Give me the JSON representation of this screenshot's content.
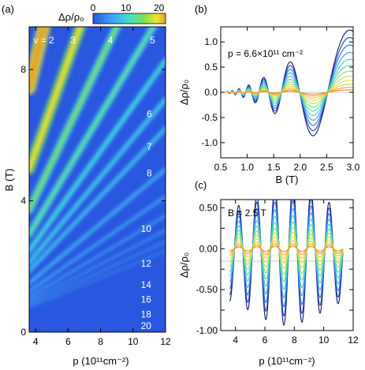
{
  "chart_data": [
    {
      "panel": "(a)",
      "type": "heatmap",
      "title": "",
      "xlabel": "p (10¹¹cm⁻²)",
      "ylabel": "B (T)",
      "xlim": [
        3.6,
        12.0
      ],
      "ylim": [
        0,
        9.3
      ],
      "xticks": [
        4,
        6,
        8,
        10,
        12
      ],
      "yticks": [
        0,
        4,
        8
      ],
      "colorbar": {
        "label": "Δρ/ρ₀",
        "ticks": [
          0,
          10,
          20
        ],
        "range": [
          0,
          22
        ],
        "colors": [
          "#2a57e0",
          "#3fa0ff",
          "#40e0d0",
          "#7ee050",
          "#e8e830",
          "#f0a020"
        ]
      },
      "filling_factor_labels": [
        {
          "nu": "ν = 2",
          "p": 4.5,
          "B": 8.8
        },
        {
          "nu": "3",
          "p": 6.3,
          "B": 8.8
        },
        {
          "nu": "4",
          "p": 8.6,
          "B": 8.8
        },
        {
          "nu": "5",
          "p": 11.2,
          "B": 8.8
        },
        {
          "nu": "6",
          "p": 11.0,
          "B": 6.55
        },
        {
          "nu": "7",
          "p": 11.0,
          "B": 5.55
        },
        {
          "nu": "8",
          "p": 11.0,
          "B": 4.75
        },
        {
          "nu": "10",
          "p": 10.8,
          "B": 3.05
        },
        {
          "nu": "12",
          "p": 10.8,
          "B": 2.0
        },
        {
          "nu": "14",
          "p": 10.8,
          "B": 1.35
        },
        {
          "nu": "16",
          "p": 10.8,
          "B": 0.9
        },
        {
          "nu": "18",
          "p": 10.8,
          "B": 0.45
        },
        {
          "nu": "20",
          "p": 10.8,
          "B": 0.1
        }
      ]
    },
    {
      "panel": "(b)",
      "type": "line",
      "title": "",
      "annotation": "p = 6.6×10¹¹ cm⁻²",
      "xlabel": "B (T)",
      "ylabel": "Δρ/ρ₀",
      "xlim": [
        0.5,
        3.0
      ],
      "ylim": [
        -1.3,
        1.3
      ],
      "xticks": [
        0.5,
        1.0,
        1.5,
        2.0,
        2.5,
        3.0
      ],
      "yticks": [
        -1.0,
        -0.5,
        0.0,
        0.5,
        1.0
      ],
      "xtick_labels": [
        "0.5",
        "1.0",
        "1.5",
        "2.0",
        "2.5",
        "3.0"
      ],
      "ytick_labels": [
        "-1.0",
        "-0.5",
        "0.0",
        "0.5",
        "1.0"
      ],
      "series_amplitudes": [
        1.0,
        0.88,
        0.76,
        0.64,
        0.53,
        0.43,
        0.34,
        0.26,
        0.19,
        0.13,
        0.08,
        0.04
      ],
      "series_colors": [
        "#0a1a70",
        "#1f3fb0",
        "#2f6fd8",
        "#3fa0e8",
        "#40c8d0",
        "#50d8a0",
        "#80e070",
        "#b0e060",
        "#d8e050",
        "#f0c040",
        "#f0a030",
        "#f08a20"
      ]
    },
    {
      "panel": "(c)",
      "type": "line",
      "title": "",
      "annotation": "B = 2.5 T",
      "xlabel": "p (10¹¹cm⁻²)",
      "ylabel": "Δρ/ρ₀",
      "xlim": [
        3.0,
        12.0
      ],
      "ylim": [
        -1.0,
        0.6
      ],
      "xticks": [
        4,
        6,
        8,
        10,
        12
      ],
      "yticks": [
        -1.0,
        -0.75,
        -0.5,
        -0.25,
        0.0,
        0.25,
        0.5
      ],
      "xtick_labels": [
        "4",
        "6",
        "8",
        "10",
        "12"
      ],
      "ytick_labels": [
        "-1.00",
        "-0.75",
        "-0.50",
        "-0.25",
        "0.00",
        "0.25",
        "0.50"
      ],
      "series_amplitudes": [
        1.0,
        0.88,
        0.76,
        0.64,
        0.53,
        0.43,
        0.34,
        0.26,
        0.19,
        0.13,
        0.08,
        0.04
      ],
      "series_colors": [
        "#0a1a70",
        "#1f3fb0",
        "#2f6fd8",
        "#3fa0e8",
        "#40c8d0",
        "#50d8a0",
        "#80e070",
        "#b0e060",
        "#d8e050",
        "#f0c040",
        "#f0a030",
        "#f08a20"
      ]
    }
  ]
}
